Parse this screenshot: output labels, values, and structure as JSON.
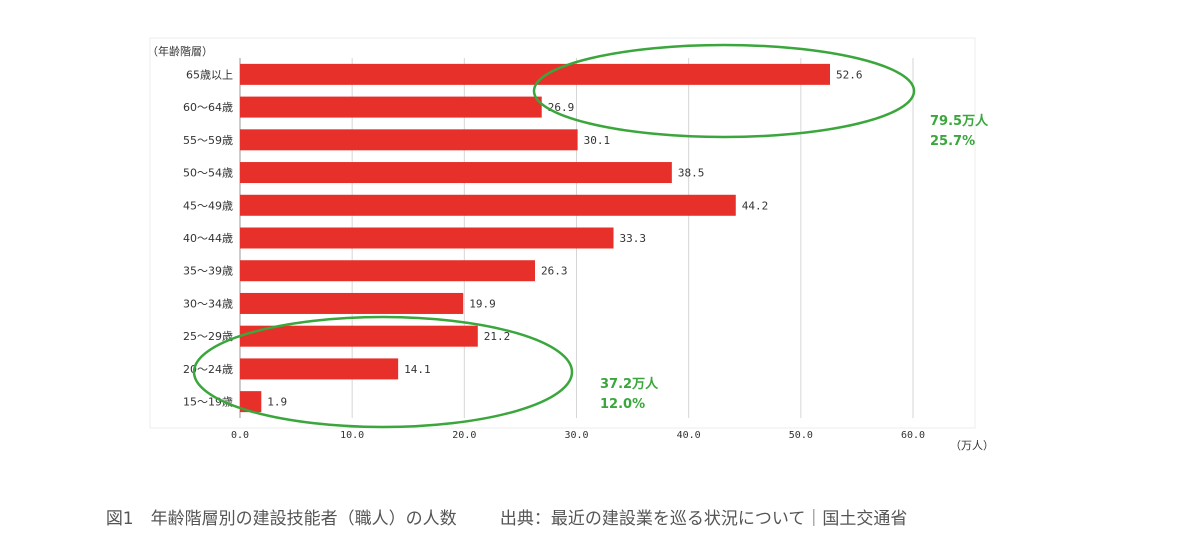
{
  "chart_data": {
    "type": "bar",
    "orientation": "horizontal",
    "ylabel": "（年齢階層）",
    "xunit": "（万人）",
    "categories": [
      "65歳以上",
      "60～64歳",
      "55～59歳",
      "50～54歳",
      "45～49歳",
      "40～44歳",
      "35～39歳",
      "30～34歳",
      "25～29歳",
      "20～24歳",
      "15～19歳"
    ],
    "values": [
      52.6,
      26.9,
      30.1,
      38.5,
      44.2,
      33.3,
      26.3,
      19.9,
      21.2,
      14.1,
      1.9
    ],
    "value_labels": [
      "52.6",
      "26.9",
      "30.1",
      "38.5",
      "44.2",
      "33.3",
      "26.3",
      "19.9",
      "21.2",
      "14.1",
      "1.9"
    ],
    "xlim": [
      0,
      60
    ],
    "xticks": [
      "0.0",
      "10.0",
      "20.0",
      "30.0",
      "40.0",
      "50.0",
      "60.0"
    ],
    "grid": true,
    "bar_color": "#e8302a",
    "annotations": [
      {
        "line1": "79.5万人",
        "line2": "25.7%",
        "color": "#3aa63c"
      },
      {
        "line1": "37.2万人",
        "line2": "12.0%",
        "color": "#3aa63c"
      }
    ]
  },
  "caption": {
    "figure": "図1　年齢階層別の建設技能者（職人）の人数",
    "source": "出典：最近の建設業を巡る状況について｜国土交通省"
  }
}
